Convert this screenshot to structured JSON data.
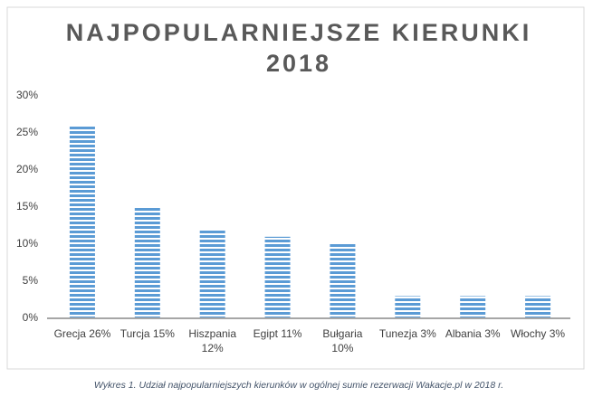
{
  "chart_data": {
    "type": "bar",
    "title": "NAJPOPULARNIEJSZE KIERUNKI 2018",
    "categories": [
      "Grecja 26%",
      "Turcja 15%",
      "Hiszpania 12%",
      "Egipt 11%",
      "Bułgaria 10%",
      "Tunezja 3%",
      "Albania 3%",
      "Włochy 3%"
    ],
    "values": [
      26,
      15,
      12,
      11,
      10,
      3,
      3,
      3
    ],
    "color": "#5b9bd5",
    "ylim": [
      0,
      30
    ],
    "yticks": [
      {
        "value": 0,
        "label": "0%"
      },
      {
        "value": 5,
        "label": "5%"
      },
      {
        "value": 10,
        "label": "10%"
      },
      {
        "value": 15,
        "label": "15%"
      },
      {
        "value": 20,
        "label": "20%"
      },
      {
        "value": 25,
        "label": "25%"
      },
      {
        "value": 30,
        "label": "30%"
      }
    ],
    "grid": false,
    "caption": "Wykres 1. Udział najpopularniejszych kierunków w ogólnej sumie rezerwacji Wakacje.pl w 2018 r."
  }
}
